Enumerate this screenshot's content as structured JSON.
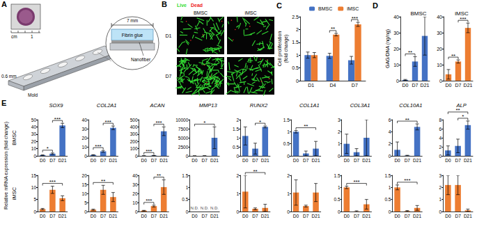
{
  "diagram": {
    "panel": "A",
    "ruler_unit": "cm",
    "ruler_value": "1",
    "width": "7 mm",
    "thickness": "0.6 mm",
    "mold": "Mold",
    "layer_top": "Fibrin glue",
    "layer_bottom": "Nanofiber"
  },
  "images": {
    "panel": "B",
    "stains": [
      {
        "name": "Live",
        "color": "#33dd33"
      },
      {
        "name": "Dead",
        "color": "#ee2222"
      }
    ],
    "columns": [
      "BMSC",
      "iMSC"
    ],
    "rows": [
      "D1",
      "D7"
    ]
  },
  "chart_data": [
    {
      "type": "bar",
      "panel": "C",
      "ylabel": "Cell proliferation\n(fold change)",
      "categories": [
        "D1",
        "D4",
        "D7"
      ],
      "series": [
        {
          "name": "BMSC",
          "color": "#4472c4",
          "values": [
            1.0,
            0.97,
            0.8
          ],
          "errors": [
            0.12,
            0.1,
            0.15
          ]
        },
        {
          "name": "iMSC",
          "color": "#ed7d31",
          "values": [
            1.0,
            1.8,
            2.2
          ],
          "errors": [
            0.1,
            0.05,
            0.08
          ]
        }
      ],
      "ylim": [
        0,
        2.5
      ],
      "yticks": [
        0,
        0.5,
        1,
        1.5,
        2,
        2.5
      ],
      "legend": "top",
      "significance": [
        {
          "category": "D4",
          "label": "**"
        },
        {
          "category": "D7",
          "label": "***"
        }
      ]
    },
    {
      "type": "bar",
      "panel": "D",
      "title": "BMSC",
      "ylabel": "GAG/DNA (ng/ng)",
      "categories": [
        "D0",
        "D7",
        "D21"
      ],
      "values": [
        0.5,
        12,
        28
      ],
      "errors": [
        0.3,
        3,
        12
      ],
      "color": "#4472c4",
      "ylim": [
        0,
        40
      ],
      "yticks": [
        0,
        10,
        20,
        30,
        40
      ],
      "significance": [
        {
          "from": "D0",
          "to": "D7",
          "label": "**"
        }
      ]
    },
    {
      "type": "bar",
      "panel": "D",
      "title": "iMSC",
      "categories": [
        "D0",
        "D7",
        "D21"
      ],
      "values": [
        4,
        12,
        33
      ],
      "errors": [
        3,
        1,
        3
      ],
      "color": "#ed7d31",
      "ylim": [
        0,
        40
      ],
      "yticks": [
        0,
        10,
        20,
        30,
        40
      ],
      "significance": [
        {
          "from": "D0",
          "to": "D7",
          "label": "**"
        },
        {
          "from": "D7",
          "to": "D21",
          "label": "***"
        }
      ]
    },
    {
      "type": "bar",
      "panel": "E",
      "row": "BMSC",
      "title": "SOX9",
      "ylabel": "Relative mRNA expression (fold change)",
      "categories": [
        "D0",
        "D7",
        "D21"
      ],
      "values": [
        1,
        3,
        42
      ],
      "errors": [
        0.3,
        1,
        3
      ],
      "color": "#4472c4",
      "ylim": [
        0,
        50
      ],
      "yticks": [
        0,
        10,
        20,
        30,
        40,
        50
      ],
      "significance": [
        {
          "from": "D0",
          "to": "D7",
          "label": "*"
        },
        {
          "from": "D7",
          "to": "D21",
          "label": "***"
        }
      ]
    },
    {
      "type": "bar",
      "panel": "E",
      "row": "BMSC",
      "title": "COL2A1",
      "categories": [
        "D0",
        "D7",
        "D21"
      ],
      "values": [
        1,
        5,
        31
      ],
      "errors": [
        0.3,
        1,
        2
      ],
      "color": "#4472c4",
      "ylim": [
        0,
        40
      ],
      "yticks": [
        0,
        10,
        20,
        30,
        40
      ],
      "significance": [
        {
          "from": "D0",
          "to": "D7",
          "label": "***"
        },
        {
          "from": "D7",
          "to": "D21",
          "label": "***"
        }
      ]
    },
    {
      "type": "bar",
      "panel": "E",
      "row": "BMSC",
      "title": "ACAN",
      "categories": [
        "D0",
        "D7",
        "D21"
      ],
      "values": [
        1,
        5,
        340
      ],
      "errors": [
        0.5,
        2,
        60
      ],
      "color": "#4472c4",
      "ylim": [
        0,
        500
      ],
      "yticks": [
        0,
        100,
        200,
        300,
        400,
        500
      ],
      "significance": [
        {
          "from": "D0",
          "to": "D7",
          "label": "***"
        },
        {
          "from": "D7",
          "to": "D21",
          "label": "***"
        }
      ]
    },
    {
      "type": "bar",
      "panel": "E",
      "row": "BMSC",
      "title": "MMP13",
      "categories": [
        "D0",
        "D7",
        "D21"
      ],
      "values": [
        1,
        15,
        5000
      ],
      "errors": [
        0.5,
        8,
        3000
      ],
      "color": "#4472c4",
      "ylim": [
        0,
        10000
      ],
      "yticks": [
        0,
        2500,
        5000,
        7500,
        10000
      ],
      "significance": [
        {
          "from": "D0",
          "to": "D21",
          "label": "*"
        }
      ]
    },
    {
      "type": "bar",
      "panel": "E",
      "row": "BMSC",
      "title": "RUNX2",
      "categories": [
        "D0",
        "D7",
        "D21"
      ],
      "values": [
        1.1,
        0.4,
        1.6
      ],
      "errors": [
        0.5,
        0.3,
        0.05
      ],
      "color": "#4472c4",
      "ylim": [
        0,
        2
      ],
      "yticks": [
        0,
        0.5,
        1,
        1.5,
        2
      ],
      "significance": [
        {
          "from": "D7",
          "to": "D21",
          "label": "*"
        }
      ]
    },
    {
      "type": "bar",
      "panel": "E",
      "row": "BMSC",
      "title": "COL1A1",
      "categories": [
        "D0",
        "D7",
        "D21"
      ],
      "values": [
        1.0,
        0.1,
        0.3
      ],
      "errors": [
        0.05,
        0.1,
        0.3
      ],
      "color": "#4472c4",
      "ylim": [
        0,
        1.5
      ],
      "yticks": [
        0,
        0.5,
        1,
        1.5
      ],
      "significance": [
        {
          "from": "D0",
          "to": "D21",
          "label": "**"
        }
      ]
    },
    {
      "type": "bar",
      "panel": "E",
      "row": "BMSC",
      "title": "COL3A1",
      "categories": [
        "D0",
        "D7",
        "D21"
      ],
      "values": [
        1,
        0.3,
        1.5
      ],
      "errors": [
        0.8,
        0.3,
        1.5
      ],
      "color": "#4472c4",
      "ylim": [
        0,
        3
      ],
      "yticks": [
        0,
        1,
        2,
        3
      ]
    },
    {
      "type": "bar",
      "panel": "E",
      "row": "BMSC",
      "title": "COL10A1",
      "categories": [
        "D0",
        "D7",
        "D21"
      ],
      "values": [
        1,
        0.05,
        4.8
      ],
      "errors": [
        1.3,
        0.05,
        0.5
      ],
      "color": "#4472c4",
      "ylim": [
        0,
        6
      ],
      "yticks": [
        0,
        2,
        4,
        6
      ],
      "significance": [
        {
          "from": "D0",
          "to": "D21",
          "label": "**"
        }
      ]
    },
    {
      "type": "bar",
      "panel": "E",
      "row": "BMSC",
      "title": "ALP",
      "categories": [
        "D0",
        "D7",
        "D21"
      ],
      "values": [
        1.2,
        2.2,
        6.8
      ],
      "errors": [
        1,
        1.5,
        0.9
      ],
      "color": "#4472c4",
      "ylim": [
        0,
        8
      ],
      "yticks": [
        0,
        2,
        4,
        6,
        8
      ],
      "significance": [
        {
          "from": "D0",
          "to": "D21",
          "label": "**"
        },
        {
          "from": "D7",
          "to": "D21",
          "label": "*"
        }
      ]
    },
    {
      "type": "bar",
      "panel": "E",
      "row": "iMSC",
      "categories": [
        "D0",
        "D7",
        "D21"
      ],
      "values": [
        1,
        9,
        5.5
      ],
      "errors": [
        0.3,
        1.5,
        1
      ],
      "color": "#ed7d31",
      "ylim": [
        0,
        15
      ],
      "yticks": [
        0,
        5,
        10,
        15
      ],
      "significance": [
        {
          "from": "D0",
          "to": "D21",
          "label": "***"
        }
      ]
    },
    {
      "type": "bar",
      "panel": "E",
      "row": "iMSC",
      "categories": [
        "D0",
        "D7",
        "D21"
      ],
      "values": [
        1,
        12,
        8
      ],
      "errors": [
        0.3,
        2.5,
        2.5
      ],
      "color": "#ed7d31",
      "ylim": [
        0,
        20
      ],
      "yticks": [
        0,
        5,
        10,
        15,
        20
      ],
      "significance": [
        {
          "from": "D0",
          "to": "D21",
          "label": "**"
        }
      ]
    },
    {
      "type": "bar",
      "panel": "E",
      "row": "iMSC",
      "categories": [
        "D0",
        "D7",
        "D21"
      ],
      "values": [
        1,
        6,
        27
      ],
      "errors": [
        0.3,
        1,
        8
      ],
      "color": "#ed7d31",
      "ylim": [
        0,
        40
      ],
      "yticks": [
        0,
        10,
        20,
        30,
        40
      ],
      "significance": [
        {
          "from": "D0",
          "to": "D7",
          "label": "***"
        },
        {
          "from": "D7",
          "to": "D21",
          "label": "**"
        }
      ]
    },
    {
      "type": "bar",
      "panel": "E",
      "row": "iMSC",
      "categories": [
        "D0",
        "D7",
        "D21"
      ],
      "values": [
        null,
        null,
        null
      ],
      "value_labels": [
        "N.D.",
        "N.D.",
        "N.D."
      ],
      "color": "#ed7d31",
      "ylim": [
        0,
        1.5
      ],
      "yticks": [
        0,
        0.5,
        1,
        1.5
      ]
    },
    {
      "type": "bar",
      "panel": "E",
      "row": "iMSC",
      "categories": [
        "D0",
        "D7",
        "D21"
      ],
      "values": [
        1.1,
        0.15,
        0.2
      ],
      "errors": [
        0.9,
        0.05,
        0.2
      ],
      "color": "#ed7d31",
      "ylim": [
        0,
        2
      ],
      "yticks": [
        0,
        1,
        2
      ],
      "significance": [
        {
          "from": "D0",
          "to": "D21",
          "label": "**"
        }
      ]
    },
    {
      "type": "bar",
      "panel": "E",
      "row": "iMSC",
      "categories": [
        "D0",
        "D7",
        "D21"
      ],
      "values": [
        1.05,
        0.3,
        1.05
      ],
      "errors": [
        0.7,
        0.05,
        0.5
      ],
      "color": "#ed7d31",
      "ylim": [
        0,
        2
      ],
      "yticks": [
        0,
        1,
        2
      ]
    },
    {
      "type": "bar",
      "panel": "E",
      "row": "iMSC",
      "categories": [
        "D0",
        "D7",
        "D21"
      ],
      "values": [
        1.0,
        0.01,
        0.3
      ],
      "errors": [
        0.05,
        0.02,
        0.2
      ],
      "color": "#ed7d31",
      "ylim": [
        0,
        1.5
      ],
      "yticks": [
        0,
        0.5,
        1,
        1.5
      ],
      "significance": [
        {
          "from": "D0",
          "to": "D21",
          "label": "***"
        }
      ]
    },
    {
      "type": "bar",
      "panel": "E",
      "row": "iMSC",
      "categories": [
        "D0",
        "D7",
        "D21"
      ],
      "values": [
        1.0,
        0.02,
        0.15
      ],
      "errors": [
        0.1,
        0.02,
        0.1
      ],
      "color": "#ed7d31",
      "ylim": [
        0,
        1.5
      ],
      "yticks": [
        0,
        0.5,
        1,
        1.5
      ],
      "significance": [
        {
          "from": "D0",
          "to": "D21",
          "label": "***"
        }
      ]
    },
    {
      "type": "bar",
      "panel": "E",
      "row": "iMSC",
      "categories": [
        "D0",
        "D7",
        "D21"
      ],
      "values": [
        2.2,
        2.2,
        0.1
      ],
      "errors": [
        0.8,
        0.8,
        0.1
      ],
      "color": "#ed7d31",
      "ylim": [
        0,
        3
      ],
      "yticks": [
        0,
        1,
        2,
        3
      ]
    }
  ]
}
